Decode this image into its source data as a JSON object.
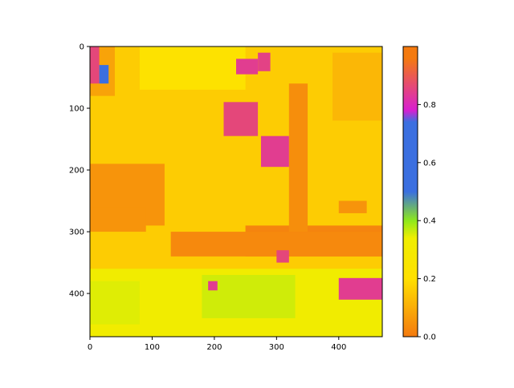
{
  "chart_data": {
    "type": "heatmap",
    "title": "",
    "xlabel": "",
    "ylabel": "",
    "xlim": [
      0,
      470
    ],
    "ylim": [
      470,
      0
    ],
    "x_ticks": [
      0,
      100,
      200,
      300,
      400
    ],
    "y_ticks": [
      0,
      100,
      200,
      300,
      400
    ],
    "grid": false,
    "colorbar": {
      "range": [
        0.0,
        1.0
      ],
      "ticks": [
        0.0,
        0.2,
        0.4,
        0.6,
        0.8
      ],
      "tick_labels": [
        "0.0",
        "0.2",
        "0.4",
        "0.6",
        "0.8"
      ],
      "stops": [
        {
          "value": 0.0,
          "color": "#f47a0f"
        },
        {
          "value": 0.2,
          "color": "#ffe000"
        },
        {
          "value": 0.34,
          "color": "#efee00"
        },
        {
          "value": 0.4,
          "color": "#8ee81c"
        },
        {
          "value": 0.5,
          "color": "#3b6fe0"
        },
        {
          "value": 0.74,
          "color": "#3b6fe0"
        },
        {
          "value": 0.78,
          "color": "#d81fd0"
        },
        {
          "value": 0.96,
          "color": "#f47a0f"
        }
      ]
    },
    "regions": [
      {
        "x": [
          0,
          470
        ],
        "y": [
          0,
          470
        ],
        "value": 0.16
      },
      {
        "x": [
          0,
          40
        ],
        "y": [
          0,
          80
        ],
        "value": 0.08
      },
      {
        "x": [
          80,
          250
        ],
        "y": [
          0,
          70
        ],
        "value": 0.22
      },
      {
        "x": [
          0,
          120
        ],
        "y": [
          190,
          290
        ],
        "value": 0.05
      },
      {
        "x": [
          250,
          470
        ],
        "y": [
          290,
          340
        ],
        "value": 0.02
      },
      {
        "x": [
          130,
          470
        ],
        "y": [
          300,
          340
        ],
        "value": 0.03
      },
      {
        "x": [
          320,
          350
        ],
        "y": [
          60,
          300
        ],
        "value": 0.04
      },
      {
        "x": [
          0,
          90
        ],
        "y": [
          260,
          300
        ],
        "value": 0.05
      },
      {
        "x": [
          0,
          470
        ],
        "y": [
          360,
          470
        ],
        "value": 0.32
      },
      {
        "x": [
          180,
          330
        ],
        "y": [
          370,
          440
        ],
        "value": 0.36
      },
      {
        "x": [
          0,
          80
        ],
        "y": [
          380,
          450
        ],
        "value": 0.35
      },
      {
        "x": [
          390,
          470
        ],
        "y": [
          10,
          120
        ],
        "value": 0.12
      },
      {
        "x": [
          0,
          15
        ],
        "y": [
          0,
          60
        ],
        "value": 0.86
      },
      {
        "x": [
          15,
          30
        ],
        "y": [
          30,
          60
        ],
        "value": 0.62
      },
      {
        "x": [
          215,
          270
        ],
        "y": [
          90,
          145
        ],
        "value": 0.86
      },
      {
        "x": [
          235,
          270
        ],
        "y": [
          20,
          45
        ],
        "value": 0.84
      },
      {
        "x": [
          270,
          290
        ],
        "y": [
          10,
          40
        ],
        "value": 0.85
      },
      {
        "x": [
          275,
          320
        ],
        "y": [
          145,
          195
        ],
        "value": 0.84
      },
      {
        "x": [
          400,
          470
        ],
        "y": [
          375,
          410
        ],
        "value": 0.84
      },
      {
        "x": [
          190,
          205
        ],
        "y": [
          380,
          395
        ],
        "value": 0.84
      },
      {
        "x": [
          400,
          445
        ],
        "y": [
          250,
          270
        ],
        "value": 0.05
      },
      {
        "x": [
          300,
          320
        ],
        "y": [
          330,
          350
        ],
        "value": 0.86
      }
    ]
  }
}
